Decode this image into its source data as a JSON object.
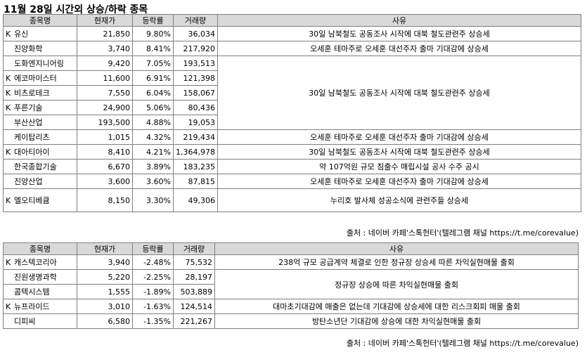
{
  "title": "11월 28일  시간외 상승/하락 종목",
  "headers": {
    "name": "종목명",
    "price": "현재가",
    "change": "등락률",
    "volume": "거래량",
    "reason": "사유"
  },
  "source": "출처 : 네이버 카페'스톡헌터'(텔레그램 채널 https://t.me/corevalue)",
  "rise": [
    {
      "name": "유신",
      "market": "K",
      "price": "21,850",
      "change": "9.80%",
      "volume": "36,034"
    },
    {
      "name": "진양화학",
      "market": "",
      "price": "3,740",
      "change": "8.41%",
      "volume": "217,920"
    },
    {
      "name": "도화엔지니어링",
      "market": "",
      "price": "9,420",
      "change": "7.05%",
      "volume": "193,513"
    },
    {
      "name": "에코마이스터",
      "market": "K",
      "price": "11,600",
      "change": "6.91%",
      "volume": "121,398"
    },
    {
      "name": "비츠로테크",
      "market": "K",
      "price": "7,550",
      "change": "6.04%",
      "volume": "158,067"
    },
    {
      "name": "푸른기술",
      "market": "K",
      "price": "24,900",
      "change": "5.06%",
      "volume": "80,436"
    },
    {
      "name": "부산산업",
      "market": "",
      "price": "193,500",
      "change": "4.88%",
      "volume": "19,053"
    },
    {
      "name": "케이탑리츠",
      "market": "",
      "price": "1,015",
      "change": "4.32%",
      "volume": "219,434"
    },
    {
      "name": "대아티아이",
      "market": "K",
      "price": "8,410",
      "change": "4.21%",
      "volume": "1,364,978"
    },
    {
      "name": "한국종합기술",
      "market": "",
      "price": "6,670",
      "change": "3.89%",
      "volume": "183,235"
    },
    {
      "name": "진양산업",
      "market": "",
      "price": "3,600",
      "change": "3.60%",
      "volume": "87,815"
    },
    {
      "name": "엘오티베큠",
      "market": "K",
      "price": "8,150",
      "change": "3.30%",
      "volume": "49,306"
    }
  ],
  "rise_reasons": [
    "30일 남북철도 공동조사 시작에 대북 철도관련주 상승세",
    "오세훈 테마주로 오세훈 대선주자 출마 기대감에 상승세",
    "30일 남북철도 공동조사 시작에 대북 철도관련주 상승세",
    "오세훈 테마주로 오세훈 대선주자 출마 기대감에 상승세",
    "30일 남북철도 공동조사 시작에 대북 철도관련주 상승세",
    "약 107억원 규모 침출수 매립시설 공사 수주 공시",
    "오세훈 테마주로 오세훈 대선주자 출마 기대감에 상승세",
    "누리호 발사체 성공소식에 관련주들 상승세"
  ],
  "fall": [
    {
      "name": "캐스텍코리아",
      "market": "K",
      "price": "3,940",
      "change": "-2.48%",
      "volume": "75,532"
    },
    {
      "name": "진원생명과학",
      "market": "",
      "price": "5,220",
      "change": "-2.25%",
      "volume": "28,197"
    },
    {
      "name": "콤텍시스템",
      "market": "",
      "price": "1,555",
      "change": "-1.89%",
      "volume": "503,889"
    },
    {
      "name": "뉴프라이드",
      "market": "K",
      "price": "3,010",
      "change": "-1.63%",
      "volume": "124,514"
    },
    {
      "name": "디피씨",
      "market": "",
      "price": "6,580",
      "change": "-1.35%",
      "volume": "221,267"
    }
  ],
  "fall_reasons": [
    "238억 규모 공급계약 체결로 인한 정규장 상승세 따른 차익실현매물 출회",
    "정규장 상승에 따른 차익실현매물 출회",
    "대마초기대감에 매출은 없는데 기대감에 상승세에 대한 리스크회피 매물 출회",
    "방탄소년단 기대감에 상승에 대한 차익실현매물 출회"
  ]
}
